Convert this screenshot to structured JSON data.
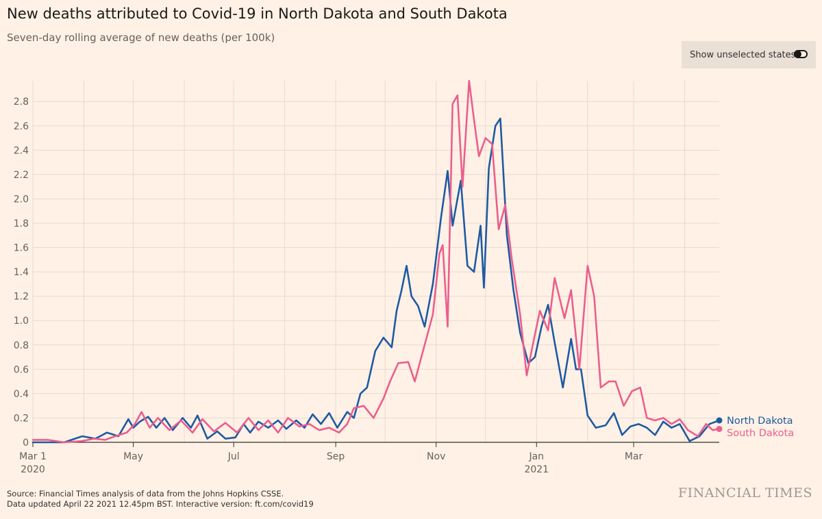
{
  "header": {
    "title": "New deaths attributed to Covid-19 in North Dakota and South Dakota",
    "subtitle": "Seven-day rolling average of new deaths (per 100k)"
  },
  "controls": {
    "toggle_label": "Show unselected states",
    "toggle_state": "off"
  },
  "footer": {
    "source_line": "Source: Financial Times analysis of data from the Johns Hopkins CSSE.",
    "updated_line": "Data updated April 22 2021 12.45pm BST. Interactive version: ft.com/covid19",
    "brand": "FINANCIAL TIMES"
  },
  "chart_data": {
    "type": "line",
    "x_axis": {
      "type": "date",
      "range": [
        "2020-03-01",
        "2021-04-22"
      ],
      "ticks": [
        {
          "date": "2020-03-01",
          "label": "Mar 1",
          "sublabel": "2020"
        },
        {
          "date": "2020-05-01",
          "label": "May"
        },
        {
          "date": "2020-07-01",
          "label": "Jul"
        },
        {
          "date": "2020-09-01",
          "label": "Sep"
        },
        {
          "date": "2020-11-01",
          "label": "Nov"
        },
        {
          "date": "2021-01-01",
          "label": "Jan",
          "sublabel": "2021"
        },
        {
          "date": "2021-03-01",
          "label": "Mar"
        }
      ]
    },
    "y_axis": {
      "range": [
        0,
        2.97
      ],
      "ticks": [
        0,
        0.2,
        0.4,
        0.6,
        0.8,
        1.0,
        1.2,
        1.4,
        1.6,
        1.8,
        2.0,
        2.2,
        2.4,
        2.6,
        2.8
      ],
      "tick_labels": [
        "0",
        "0.2",
        "0.4",
        "0.6",
        "0.8",
        "1.0",
        "1.2",
        "1.4",
        "1.6",
        "1.8",
        "2.0",
        "2.2",
        "2.4",
        "2.6",
        "2.8"
      ]
    },
    "grid": true,
    "legend": "end-of-line labels",
    "series": [
      {
        "name": "North Dakota",
        "color": "#1d5aa3",
        "points": [
          [
            "2020-03-01",
            0
          ],
          [
            "2020-03-20",
            0
          ],
          [
            "2020-03-31",
            0.05
          ],
          [
            "2020-04-08",
            0.03
          ],
          [
            "2020-04-15",
            0.08
          ],
          [
            "2020-04-22",
            0.05
          ],
          [
            "2020-04-28",
            0.19
          ],
          [
            "2020-05-01",
            0.12
          ],
          [
            "2020-05-05",
            0.17
          ],
          [
            "2020-05-10",
            0.21
          ],
          [
            "2020-05-15",
            0.12
          ],
          [
            "2020-05-20",
            0.2
          ],
          [
            "2020-05-25",
            0.1
          ],
          [
            "2020-05-31",
            0.2
          ],
          [
            "2020-06-05",
            0.12
          ],
          [
            "2020-06-09",
            0.22
          ],
          [
            "2020-06-15",
            0.03
          ],
          [
            "2020-06-21",
            0.09
          ],
          [
            "2020-06-26",
            0.03
          ],
          [
            "2020-07-02",
            0.04
          ],
          [
            "2020-07-07",
            0.15
          ],
          [
            "2020-07-11",
            0.08
          ],
          [
            "2020-07-16",
            0.17
          ],
          [
            "2020-07-22",
            0.12
          ],
          [
            "2020-07-28",
            0.18
          ],
          [
            "2020-08-02",
            0.11
          ],
          [
            "2020-08-08",
            0.18
          ],
          [
            "2020-08-13",
            0.12
          ],
          [
            "2020-08-18",
            0.23
          ],
          [
            "2020-08-23",
            0.15
          ],
          [
            "2020-08-28",
            0.24
          ],
          [
            "2020-09-02",
            0.12
          ],
          [
            "2020-09-08",
            0.25
          ],
          [
            "2020-09-12",
            0.2
          ],
          [
            "2020-09-16",
            0.4
          ],
          [
            "2020-09-20",
            0.45
          ],
          [
            "2020-09-25",
            0.75
          ],
          [
            "2020-09-30",
            0.86
          ],
          [
            "2020-10-05",
            0.78
          ],
          [
            "2020-10-08",
            1.08
          ],
          [
            "2020-10-11",
            1.25
          ],
          [
            "2020-10-14",
            1.45
          ],
          [
            "2020-10-17",
            1.2
          ],
          [
            "2020-10-21",
            1.12
          ],
          [
            "2020-10-25",
            0.95
          ],
          [
            "2020-10-30",
            1.3
          ],
          [
            "2020-11-04",
            1.85
          ],
          [
            "2020-11-08",
            2.23
          ],
          [
            "2020-11-11",
            1.78
          ],
          [
            "2020-11-16",
            2.15
          ],
          [
            "2020-11-20",
            1.45
          ],
          [
            "2020-11-24",
            1.4
          ],
          [
            "2020-11-28",
            1.78
          ],
          [
            "2020-11-30",
            1.27
          ],
          [
            "2020-12-03",
            2.25
          ],
          [
            "2020-12-07",
            2.6
          ],
          [
            "2020-12-10",
            2.66
          ],
          [
            "2020-12-14",
            1.7
          ],
          [
            "2020-12-18",
            1.25
          ],
          [
            "2020-12-22",
            0.9
          ],
          [
            "2020-12-27",
            0.65
          ],
          [
            "2020-12-31",
            0.7
          ],
          [
            "2021-01-04",
            0.95
          ],
          [
            "2021-01-08",
            1.13
          ],
          [
            "2021-01-12",
            0.82
          ],
          [
            "2021-01-17",
            0.45
          ],
          [
            "2021-01-22",
            0.85
          ],
          [
            "2021-01-25",
            0.6
          ],
          [
            "2021-01-28",
            0.6
          ],
          [
            "2021-02-01",
            0.22
          ],
          [
            "2021-02-06",
            0.12
          ],
          [
            "2021-02-12",
            0.14
          ],
          [
            "2021-02-17",
            0.24
          ],
          [
            "2021-02-22",
            0.06
          ],
          [
            "2021-02-27",
            0.13
          ],
          [
            "2021-03-04",
            0.15
          ],
          [
            "2021-03-09",
            0.12
          ],
          [
            "2021-03-14",
            0.06
          ],
          [
            "2021-03-19",
            0.17
          ],
          [
            "2021-03-24",
            0.12
          ],
          [
            "2021-03-29",
            0.15
          ],
          [
            "2021-04-04",
            0.01
          ],
          [
            "2021-04-10",
            0.05
          ],
          [
            "2021-04-16",
            0.15
          ],
          [
            "2021-04-22",
            0.18
          ]
        ]
      },
      {
        "name": "South Dakota",
        "color": "#eb5e8d",
        "points": [
          [
            "2020-03-01",
            0.02
          ],
          [
            "2020-03-10",
            0.02
          ],
          [
            "2020-03-20",
            0
          ],
          [
            "2020-03-31",
            0.01
          ],
          [
            "2020-04-07",
            0.03
          ],
          [
            "2020-04-14",
            0.02
          ],
          [
            "2020-04-20",
            0.05
          ],
          [
            "2020-04-27",
            0.08
          ],
          [
            "2020-05-02",
            0.15
          ],
          [
            "2020-05-06",
            0.25
          ],
          [
            "2020-05-11",
            0.12
          ],
          [
            "2020-05-16",
            0.2
          ],
          [
            "2020-05-23",
            0.1
          ],
          [
            "2020-05-30",
            0.18
          ],
          [
            "2020-06-06",
            0.08
          ],
          [
            "2020-06-12",
            0.19
          ],
          [
            "2020-06-19",
            0.09
          ],
          [
            "2020-06-26",
            0.16
          ],
          [
            "2020-07-03",
            0.08
          ],
          [
            "2020-07-10",
            0.2
          ],
          [
            "2020-07-16",
            0.1
          ],
          [
            "2020-07-22",
            0.18
          ],
          [
            "2020-07-28",
            0.08
          ],
          [
            "2020-08-03",
            0.2
          ],
          [
            "2020-08-10",
            0.13
          ],
          [
            "2020-08-16",
            0.15
          ],
          [
            "2020-08-22",
            0.1
          ],
          [
            "2020-08-28",
            0.12
          ],
          [
            "2020-09-03",
            0.08
          ],
          [
            "2020-09-08",
            0.15
          ],
          [
            "2020-09-12",
            0.28
          ],
          [
            "2020-09-18",
            0.3
          ],
          [
            "2020-09-24",
            0.2
          ],
          [
            "2020-09-30",
            0.36
          ],
          [
            "2020-10-04",
            0.5
          ],
          [
            "2020-10-09",
            0.65
          ],
          [
            "2020-10-15",
            0.66
          ],
          [
            "2020-10-19",
            0.5
          ],
          [
            "2020-10-25",
            0.8
          ],
          [
            "2020-10-30",
            1.05
          ],
          [
            "2020-11-03",
            1.55
          ],
          [
            "2020-11-05",
            1.62
          ],
          [
            "2020-11-08",
            0.95
          ],
          [
            "2020-11-11",
            2.78
          ],
          [
            "2020-11-14",
            2.85
          ],
          [
            "2020-11-17",
            2.1
          ],
          [
            "2020-11-21",
            2.97
          ],
          [
            "2020-11-24",
            2.65
          ],
          [
            "2020-11-27",
            2.35
          ],
          [
            "2020-12-01",
            2.5
          ],
          [
            "2020-12-05",
            2.45
          ],
          [
            "2020-12-09",
            1.75
          ],
          [
            "2020-12-13",
            1.95
          ],
          [
            "2020-12-17",
            1.5
          ],
          [
            "2020-12-22",
            1.05
          ],
          [
            "2020-12-26",
            0.55
          ],
          [
            "2020-12-30",
            0.82
          ],
          [
            "2021-01-03",
            1.08
          ],
          [
            "2021-01-08",
            0.92
          ],
          [
            "2021-01-12",
            1.35
          ],
          [
            "2021-01-18",
            1.02
          ],
          [
            "2021-01-22",
            1.25
          ],
          [
            "2021-01-27",
            0.6
          ],
          [
            "2021-02-01",
            1.45
          ],
          [
            "2021-02-05",
            1.2
          ],
          [
            "2021-02-09",
            0.45
          ],
          [
            "2021-02-14",
            0.5
          ],
          [
            "2021-02-18",
            0.5
          ],
          [
            "2021-02-23",
            0.3
          ],
          [
            "2021-02-28",
            0.42
          ],
          [
            "2021-03-05",
            0.45
          ],
          [
            "2021-03-09",
            0.2
          ],
          [
            "2021-03-14",
            0.18
          ],
          [
            "2021-03-19",
            0.2
          ],
          [
            "2021-03-24",
            0.15
          ],
          [
            "2021-03-29",
            0.19
          ],
          [
            "2021-04-03",
            0.1
          ],
          [
            "2021-04-09",
            0.05
          ],
          [
            "2021-04-14",
            0.15
          ],
          [
            "2021-04-18",
            0.1
          ],
          [
            "2021-04-22",
            0.11
          ]
        ]
      }
    ]
  }
}
